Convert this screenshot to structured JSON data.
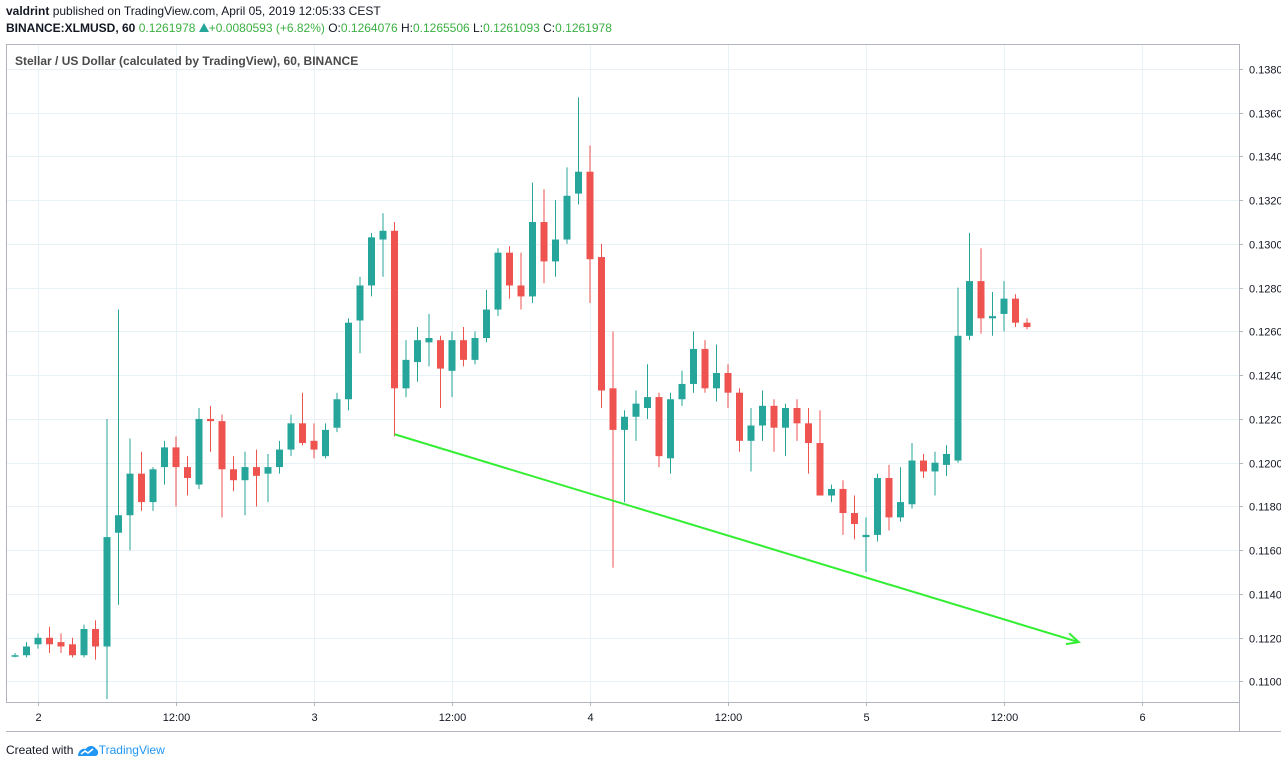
{
  "header": {
    "author": "valdrint",
    "published_text": "published on TradingView.com, April 05, 2019 12:05:33 CEST",
    "symbol": "BINANCE:XLMUSD, 60",
    "last": "0.1261978",
    "change": "+0.0080593 (+6.82%)",
    "o_label": "O:",
    "o_value": "0.1264076",
    "h_label": "H:",
    "h_value": "0.1265506",
    "l_label": "L:",
    "l_value": "0.1261093",
    "c_label": "C:",
    "c_value": "0.1261978"
  },
  "footer": {
    "created_with": "Created with",
    "brand": "TradingView"
  },
  "colors": {
    "up": "#26a69a",
    "down": "#ef5350",
    "trendline": "#33ee33",
    "grid": "#e8f1f6"
  },
  "chart_data": {
    "type": "candlestick",
    "title": "Stellar / US Dollar (calculated by TradingView), 60, BINANCE",
    "ylim": [
      0.1092,
      0.139
    ],
    "y_ticks": [
      "0.1100000",
      "0.1120000",
      "0.1140000",
      "0.1160000",
      "0.1180000",
      "0.1200000",
      "0.1220000",
      "0.1240000",
      "0.1260000",
      "0.1280000",
      "0.1300000",
      "0.1320000",
      "0.1340000",
      "0.1360000",
      "0.1380000"
    ],
    "x_ticks": [
      {
        "label": "2",
        "index": 2
      },
      {
        "label": "12:00",
        "index": 14
      },
      {
        "label": "3",
        "index": 26
      },
      {
        "label": "12:00",
        "index": 38
      },
      {
        "label": "4",
        "index": 50
      },
      {
        "label": "12:00",
        "index": 62
      },
      {
        "label": "5",
        "index": 74
      },
      {
        "label": "12:00",
        "index": 86
      },
      {
        "label": "6",
        "index": 98
      }
    ],
    "grid": true,
    "candles": [
      [
        0.1112,
        0.1113,
        0.1111,
        0.1112
      ],
      [
        0.1112,
        0.1118,
        0.1111,
        0.1116
      ],
      [
        0.1117,
        0.1122,
        0.1115,
        0.112
      ],
      [
        0.112,
        0.1125,
        0.1113,
        0.1117
      ],
      [
        0.1118,
        0.1122,
        0.1113,
        0.1116
      ],
      [
        0.1117,
        0.112,
        0.1111,
        0.1112
      ],
      [
        0.1112,
        0.1126,
        0.1111,
        0.1124
      ],
      [
        0.1124,
        0.1128,
        0.111,
        0.1116
      ],
      [
        0.1116,
        0.122,
        0.1092,
        0.1166
      ],
      [
        0.1168,
        0.127,
        0.1135,
        0.1176
      ],
      [
        0.1176,
        0.1211,
        0.116,
        0.1195
      ],
      [
        0.1195,
        0.1205,
        0.1178,
        0.1182
      ],
      [
        0.1182,
        0.1198,
        0.1178,
        0.1197
      ],
      [
        0.1198,
        0.121,
        0.119,
        0.1207
      ],
      [
        0.1207,
        0.1212,
        0.118,
        0.1198
      ],
      [
        0.1198,
        0.1203,
        0.1185,
        0.1193
      ],
      [
        0.119,
        0.1225,
        0.1188,
        0.122
      ],
      [
        0.122,
        0.1226,
        0.1205,
        0.1219
      ],
      [
        0.1219,
        0.1222,
        0.1175,
        0.1197
      ],
      [
        0.1197,
        0.1203,
        0.1187,
        0.1192
      ],
      [
        0.1192,
        0.1205,
        0.1176,
        0.1198
      ],
      [
        0.1198,
        0.1206,
        0.118,
        0.1194
      ],
      [
        0.1195,
        0.1204,
        0.1182,
        0.1198
      ],
      [
        0.1198,
        0.121,
        0.1195,
        0.1206
      ],
      [
        0.1206,
        0.1222,
        0.1203,
        0.1218
      ],
      [
        0.1218,
        0.1232,
        0.1208,
        0.1209
      ],
      [
        0.121,
        0.1218,
        0.1202,
        0.1206
      ],
      [
        0.1203,
        0.1218,
        0.1202,
        0.1215
      ],
      [
        0.1216,
        0.1232,
        0.1214,
        0.1229
      ],
      [
        0.1229,
        0.1266,
        0.1224,
        0.1264
      ],
      [
        0.1265,
        0.1285,
        0.125,
        0.1281
      ],
      [
        0.1281,
        0.1305,
        0.1276,
        0.1303
      ],
      [
        0.1302,
        0.1314,
        0.1285,
        0.1306
      ],
      [
        0.1306,
        0.131,
        0.1212,
        0.1234
      ],
      [
        0.1234,
        0.1256,
        0.123,
        0.1247
      ],
      [
        0.1246,
        0.1262,
        0.1237,
        0.1256
      ],
      [
        0.1255,
        0.1268,
        0.1244,
        0.1257
      ],
      [
        0.1256,
        0.1258,
        0.1225,
        0.1243
      ],
      [
        0.1242,
        0.126,
        0.123,
        0.1256
      ],
      [
        0.1256,
        0.1262,
        0.1244,
        0.1247
      ],
      [
        0.1247,
        0.126,
        0.1245,
        0.1257
      ],
      [
        0.1257,
        0.1279,
        0.1255,
        0.127
      ],
      [
        0.127,
        0.1298,
        0.1267,
        0.1296
      ],
      [
        0.1296,
        0.1299,
        0.1275,
        0.1281
      ],
      [
        0.1281,
        0.1296,
        0.127,
        0.1276
      ],
      [
        0.1276,
        0.1328,
        0.1273,
        0.131
      ],
      [
        0.131,
        0.1325,
        0.1282,
        0.1292
      ],
      [
        0.1292,
        0.132,
        0.1285,
        0.1302
      ],
      [
        0.1302,
        0.1335,
        0.13,
        0.1322
      ],
      [
        0.1323,
        0.1367,
        0.1318,
        0.1333
      ],
      [
        0.1333,
        0.1345,
        0.1273,
        0.1293
      ],
      [
        0.1294,
        0.13,
        0.1225,
        0.1233
      ],
      [
        0.1234,
        0.126,
        0.1152,
        0.1215
      ],
      [
        0.1215,
        0.1224,
        0.1182,
        0.1221
      ],
      [
        0.1221,
        0.1233,
        0.121,
        0.1227
      ],
      [
        0.1225,
        0.1245,
        0.122,
        0.123
      ],
      [
        0.123,
        0.1232,
        0.1198,
        0.1203
      ],
      [
        0.1202,
        0.1232,
        0.1195,
        0.1229
      ],
      [
        0.1229,
        0.1242,
        0.1226,
        0.1236
      ],
      [
        0.1236,
        0.126,
        0.1232,
        0.1252
      ],
      [
        0.1252,
        0.1256,
        0.1232,
        0.1234
      ],
      [
        0.1234,
        0.1254,
        0.1228,
        0.1241
      ],
      [
        0.1241,
        0.1245,
        0.1225,
        0.1232
      ],
      [
        0.1232,
        0.1234,
        0.1205,
        0.121
      ],
      [
        0.121,
        0.1225,
        0.1196,
        0.1217
      ],
      [
        0.1217,
        0.1233,
        0.121,
        0.1226
      ],
      [
        0.1226,
        0.1229,
        0.1205,
        0.1216
      ],
      [
        0.1216,
        0.1227,
        0.1203,
        0.1225
      ],
      [
        0.1225,
        0.1229,
        0.121,
        0.1218
      ],
      [
        0.1218,
        0.1225,
        0.1195,
        0.1209
      ],
      [
        0.1209,
        0.1224,
        0.1186,
        0.1185
      ],
      [
        0.1185,
        0.119,
        0.1182,
        0.1188
      ],
      [
        0.1188,
        0.1192,
        0.1167,
        0.1177
      ],
      [
        0.1177,
        0.1185,
        0.1165,
        0.1172
      ],
      [
        0.1166,
        0.1175,
        0.115,
        0.1167
      ],
      [
        0.1167,
        0.1195,
        0.1164,
        0.1193
      ],
      [
        0.1193,
        0.1199,
        0.1169,
        0.1175
      ],
      [
        0.1175,
        0.1198,
        0.1173,
        0.1182
      ],
      [
        0.1181,
        0.1209,
        0.1179,
        0.1201
      ],
      [
        0.1201,
        0.1204,
        0.1193,
        0.1196
      ],
      [
        0.1196,
        0.1205,
        0.1185,
        0.12
      ],
      [
        0.1199,
        0.1208,
        0.1194,
        0.1204
      ],
      [
        0.1201,
        0.128,
        0.12,
        0.1258
      ],
      [
        0.1258,
        0.1305,
        0.1256,
        0.1283
      ],
      [
        0.1283,
        0.1298,
        0.1259,
        0.1266
      ],
      [
        0.1266,
        0.1278,
        0.1258,
        0.1267
      ],
      [
        0.1268,
        0.1283,
        0.126,
        0.1275
      ],
      [
        0.1275,
        0.1277,
        0.1262,
        0.1264
      ],
      [
        0.1264,
        0.1266,
        0.1261,
        0.1262
      ]
    ],
    "annotations": [
      {
        "type": "arrow",
        "from": {
          "index": 33,
          "value": 0.1213
        },
        "to": {
          "index": 92.5,
          "value": 0.1118
        }
      }
    ]
  }
}
